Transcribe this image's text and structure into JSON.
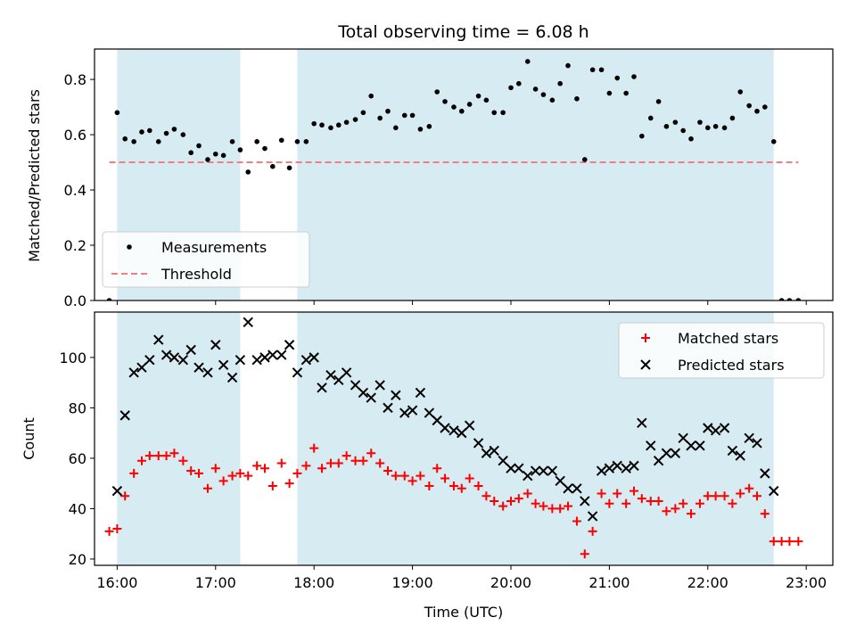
{
  "chart_data": [
    {
      "type": "scatter",
      "title": "Total observing time = 6.08 h",
      "xlabel": "",
      "ylabel": "Matched/Predicted stars",
      "ylim": [
        0,
        0.91
      ],
      "yticks": [
        0.0,
        0.2,
        0.4,
        0.6,
        0.8
      ],
      "ytick_labels": [
        "0.0",
        "0.2",
        "0.4",
        "0.6",
        "0.8"
      ],
      "xlim": [
        15.77,
        23.27
      ],
      "xticks": [
        16,
        17,
        18,
        19,
        20,
        21,
        22,
        23
      ],
      "shaded_intervals": [
        [
          16.0,
          17.25
        ],
        [
          17.83,
          22.67
        ]
      ],
      "shade_color": "#add8e6",
      "legend": {
        "position": "lower-left",
        "entries": [
          {
            "label": "Measurements",
            "marker": "dot",
            "color": "#000000"
          },
          {
            "label": "Threshold",
            "marker": "dashed-line",
            "color": "#f08080"
          }
        ]
      },
      "threshold": {
        "name": "Threshold",
        "value": 0.5,
        "x_range": [
          15.92,
          22.92
        ],
        "color": "#f08080"
      },
      "series": [
        {
          "name": "Measurements",
          "color": "#000000",
          "x": [
            15.92,
            16.0,
            16.08,
            16.17,
            16.25,
            16.33,
            16.42,
            16.5,
            16.58,
            16.67,
            16.75,
            16.83,
            16.92,
            17.0,
            17.08,
            17.17,
            17.25,
            17.33,
            17.42,
            17.5,
            17.58,
            17.67,
            17.75,
            17.83,
            17.92,
            18.0,
            18.08,
            18.17,
            18.25,
            18.33,
            18.42,
            18.5,
            18.58,
            18.67,
            18.75,
            18.83,
            18.92,
            19.0,
            19.08,
            19.17,
            19.25,
            19.33,
            19.42,
            19.5,
            19.58,
            19.67,
            19.75,
            19.83,
            19.92,
            20.0,
            20.08,
            20.17,
            20.25,
            20.33,
            20.42,
            20.5,
            20.58,
            20.67,
            20.75,
            20.83,
            20.92,
            21.0,
            21.08,
            21.17,
            21.25,
            21.33,
            21.42,
            21.5,
            21.58,
            21.67,
            21.75,
            21.83,
            21.92,
            22.0,
            22.08,
            22.17,
            22.25,
            22.33,
            22.42,
            22.5,
            22.58,
            22.67,
            22.75,
            22.83,
            22.92
          ],
          "y": [
            0.0,
            0.68,
            0.585,
            0.575,
            0.61,
            0.615,
            0.575,
            0.605,
            0.62,
            0.6,
            0.535,
            0.56,
            0.51,
            0.53,
            0.525,
            0.575,
            0.545,
            0.465,
            0.575,
            0.55,
            0.485,
            0.58,
            0.48,
            0.575,
            0.575,
            0.64,
            0.635,
            0.625,
            0.635,
            0.645,
            0.655,
            0.68,
            0.74,
            0.66,
            0.685,
            0.625,
            0.67,
            0.67,
            0.62,
            0.63,
            0.755,
            0.72,
            0.7,
            0.685,
            0.71,
            0.74,
            0.725,
            0.68,
            0.68,
            0.77,
            0.785,
            0.865,
            0.765,
            0.745,
            0.725,
            0.785,
            0.85,
            0.73,
            0.51,
            0.835,
            0.835,
            0.75,
            0.805,
            0.75,
            0.81,
            0.595,
            0.66,
            0.72,
            0.63,
            0.645,
            0.615,
            0.585,
            0.645,
            0.625,
            0.63,
            0.625,
            0.66,
            0.755,
            0.705,
            0.685,
            0.7,
            0.575,
            0.0,
            0.0,
            0.0
          ]
        }
      ]
    },
    {
      "type": "scatter",
      "title": "",
      "xlabel": "Time (UTC)",
      "ylabel": "Count",
      "ylim": [
        17.5,
        118
      ],
      "yticks": [
        20,
        40,
        60,
        80,
        100
      ],
      "ytick_labels": [
        "20",
        "40",
        "60",
        "80",
        "100"
      ],
      "xlim": [
        15.77,
        23.27
      ],
      "xticks": [
        16,
        17,
        18,
        19,
        20,
        21,
        22,
        23
      ],
      "xtick_labels": [
        "16:00",
        "17:00",
        "18:00",
        "19:00",
        "20:00",
        "21:00",
        "22:00",
        "23:00"
      ],
      "shaded_intervals": [
        [
          16.0,
          17.25
        ],
        [
          17.83,
          22.67
        ]
      ],
      "shade_color": "#add8e6",
      "legend": {
        "position": "upper-right",
        "entries": [
          {
            "label": "Matched stars",
            "marker": "plus",
            "color": "#ff0000"
          },
          {
            "label": "Predicted stars",
            "marker": "x",
            "color": "#000000"
          }
        ]
      },
      "series": [
        {
          "name": "Matched stars",
          "marker": "plus",
          "color": "#ff0000",
          "x": [
            15.92,
            16.0,
            16.08,
            16.17,
            16.25,
            16.33,
            16.42,
            16.5,
            16.58,
            16.67,
            16.75,
            16.83,
            16.92,
            17.0,
            17.08,
            17.17,
            17.25,
            17.33,
            17.42,
            17.5,
            17.58,
            17.67,
            17.75,
            17.83,
            17.92,
            18.0,
            18.08,
            18.17,
            18.25,
            18.33,
            18.42,
            18.5,
            18.58,
            18.67,
            18.75,
            18.83,
            18.92,
            19.0,
            19.08,
            19.17,
            19.25,
            19.33,
            19.42,
            19.5,
            19.58,
            19.67,
            19.75,
            19.83,
            19.92,
            20.0,
            20.08,
            20.17,
            20.25,
            20.33,
            20.42,
            20.5,
            20.58,
            20.67,
            20.75,
            20.83,
            20.92,
            21.0,
            21.08,
            21.17,
            21.25,
            21.33,
            21.42,
            21.5,
            21.58,
            21.67,
            21.75,
            21.83,
            21.92,
            22.0,
            22.08,
            22.17,
            22.25,
            22.33,
            22.42,
            22.5,
            22.58,
            22.67,
            22.75,
            22.83,
            22.92
          ],
          "y": [
            31,
            32,
            45,
            54,
            59,
            61,
            61,
            61,
            62,
            59,
            55,
            54,
            48,
            56,
            51,
            53,
            54,
            53,
            57,
            56,
            49,
            58,
            50,
            54,
            57,
            64,
            56,
            58,
            58,
            61,
            59,
            59,
            62,
            58,
            55,
            53,
            53,
            51,
            53,
            49,
            56,
            52,
            49,
            48,
            52,
            49,
            45,
            43,
            41,
            43,
            44,
            46,
            42,
            41,
            40,
            40,
            41,
            35,
            22,
            31,
            46,
            42,
            46,
            42,
            47,
            44,
            43,
            43,
            39,
            40,
            42,
            38,
            42,
            45,
            45,
            45,
            42,
            46,
            48,
            45,
            38,
            27,
            27,
            27,
            27
          ]
        },
        {
          "name": "Predicted stars",
          "marker": "x",
          "color": "#000000",
          "x": [
            16.0,
            16.08,
            16.17,
            16.25,
            16.33,
            16.42,
            16.5,
            16.58,
            16.67,
            16.75,
            16.83,
            16.92,
            17.0,
            17.08,
            17.17,
            17.25,
            17.33,
            17.42,
            17.5,
            17.58,
            17.67,
            17.75,
            17.83,
            17.92,
            18.0,
            18.08,
            18.17,
            18.25,
            18.33,
            18.42,
            18.5,
            18.58,
            18.67,
            18.75,
            18.83,
            18.92,
            19.0,
            19.08,
            19.17,
            19.25,
            19.33,
            19.42,
            19.5,
            19.58,
            19.67,
            19.75,
            19.83,
            19.92,
            20.0,
            20.08,
            20.17,
            20.25,
            20.33,
            20.42,
            20.5,
            20.58,
            20.67,
            20.75,
            20.83,
            20.92,
            21.0,
            21.08,
            21.17,
            21.25,
            21.33,
            21.42,
            21.5,
            21.58,
            21.67,
            21.75,
            21.83,
            21.92,
            22.0,
            22.08,
            22.17,
            22.25,
            22.33,
            22.42,
            22.5,
            22.58,
            22.67
          ],
          "y": [
            47,
            77,
            94,
            96,
            99,
            107,
            101,
            100,
            99,
            103,
            96,
            94,
            105,
            97,
            92,
            99,
            114,
            99,
            100,
            101,
            101,
            105,
            94,
            99,
            100,
            88,
            93,
            91,
            94,
            89,
            86,
            84,
            89,
            80,
            85,
            78,
            79,
            86,
            78,
            75,
            72,
            71,
            70,
            73,
            66,
            62,
            63,
            59,
            56,
            56,
            53,
            55,
            55,
            55,
            51,
            48,
            48,
            43,
            37,
            55,
            56,
            57,
            56,
            57,
            74,
            65,
            59,
            62,
            62,
            68,
            65,
            65,
            72,
            71,
            72,
            63,
            61,
            68,
            66,
            54,
            47
          ]
        }
      ]
    }
  ]
}
